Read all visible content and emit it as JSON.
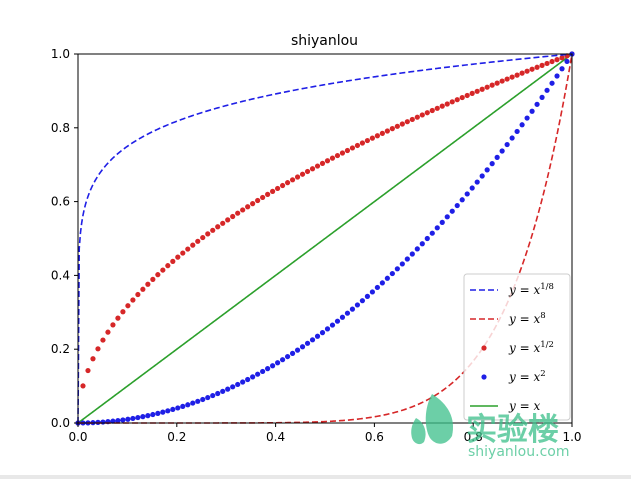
{
  "chart_data": {
    "type": "line",
    "title": "shiyanlou",
    "xlabel": "",
    "ylabel": "",
    "xlim": [
      0.0,
      1.0
    ],
    "ylim": [
      0.0,
      1.0
    ],
    "xticks": [
      "0.0",
      "0.2",
      "0.4",
      "0.6",
      "0.8",
      "1.0"
    ],
    "yticks": [
      "0.0",
      "0.2",
      "0.4",
      "0.6",
      "0.8",
      "1.0"
    ],
    "grid": false,
    "legend_position": "lower-right",
    "sample_count": 100,
    "series": [
      {
        "name": "y = x^{1/8}",
        "label_main": "y = x",
        "label_sup": "1/8",
        "exponent": 0.125,
        "color": "#1f1fe6",
        "style": "dashed"
      },
      {
        "name": "y = x^{8}",
        "label_main": "y = x",
        "label_sup": "8",
        "exponent": 8,
        "color": "#d62728",
        "style": "dashed"
      },
      {
        "name": "y = x^{1/2}",
        "label_main": "y = x",
        "label_sup": "1/2",
        "exponent": 0.5,
        "color": "#d62728",
        "style": "dots"
      },
      {
        "name": "y = x^{2}",
        "label_main": "y = x",
        "label_sup": "2",
        "exponent": 2,
        "color": "#1f1fe6",
        "style": "dots"
      },
      {
        "name": "y = x",
        "label_main": "y = x",
        "label_sup": "",
        "exponent": 1,
        "color": "#2ca02c",
        "style": "solid"
      }
    ]
  },
  "watermark": {
    "cn_text": "实验楼",
    "url_text": "shiyanlou.com",
    "color": "#3cc08a"
  }
}
